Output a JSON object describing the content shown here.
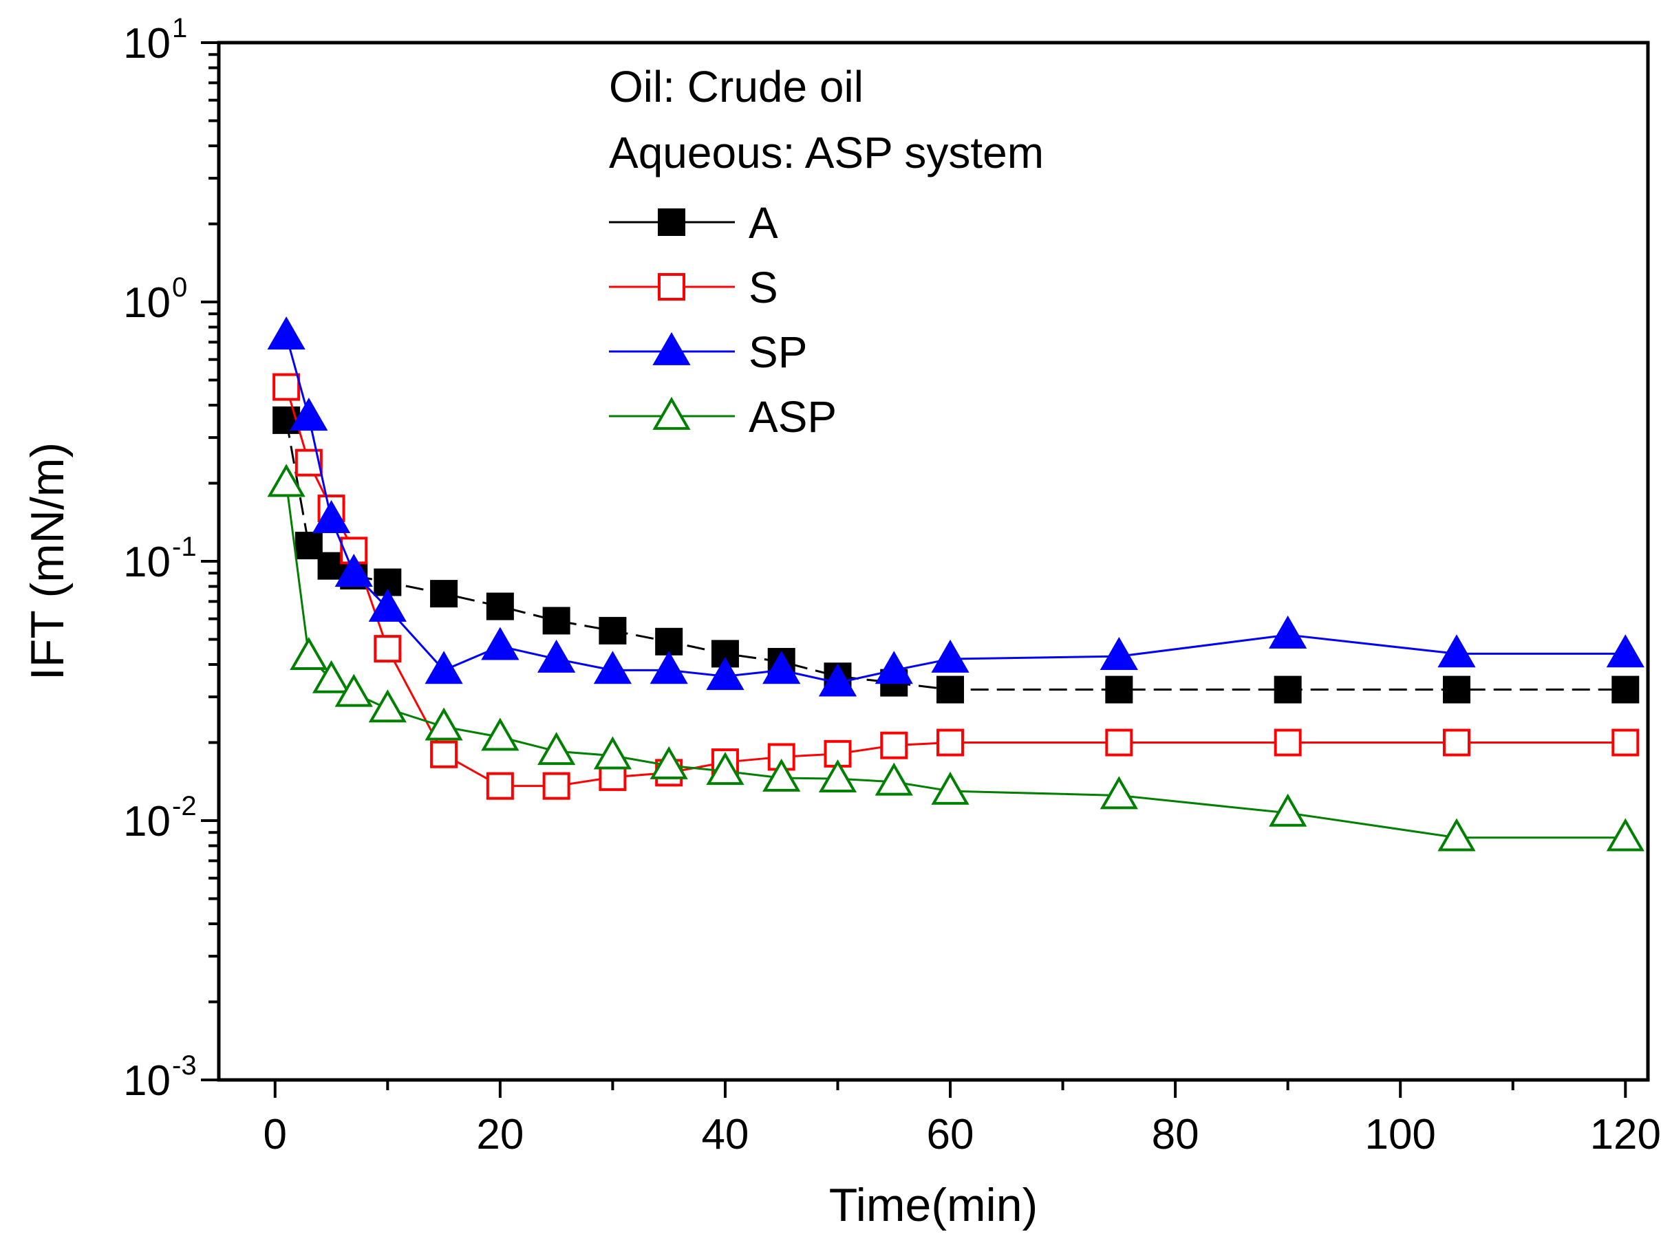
{
  "chart_data": {
    "type": "line",
    "title": "",
    "xlabel": "Time(min)",
    "ylabel": "IFT (mN/m)",
    "xlim": [
      -5,
      122
    ],
    "xticks": [
      0,
      20,
      40,
      60,
      80,
      100,
      120
    ],
    "yscale": "log",
    "ylim": [
      0.001,
      10
    ],
    "yticks": [
      {
        "value": 0.001,
        "base": "10",
        "exp": "-3"
      },
      {
        "value": 0.01,
        "base": "10",
        "exp": "-2"
      },
      {
        "value": 0.1,
        "base": "10",
        "exp": "-1"
      },
      {
        "value": 1,
        "base": "10",
        "exp": "0"
      },
      {
        "value": 10,
        "base": "10",
        "exp": "1"
      }
    ],
    "grid": false,
    "legend": {
      "placement": "top-center",
      "header_lines": [
        "Oil: Crude oil",
        "Aqueous: ASP system"
      ]
    },
    "series": [
      {
        "name": "A",
        "color": "#000000",
        "marker": "square-filled",
        "line": "dash",
        "x": [
          1,
          3,
          5,
          7,
          10,
          15,
          20,
          25,
          30,
          35,
          40,
          45,
          50,
          55,
          60,
          75,
          90,
          105,
          120
        ],
        "y": [
          0.35,
          0.115,
          0.096,
          0.088,
          0.083,
          0.075,
          0.067,
          0.059,
          0.054,
          0.049,
          0.044,
          0.041,
          0.036,
          0.034,
          0.032,
          0.032,
          0.032,
          0.032,
          0.032
        ]
      },
      {
        "name": "S",
        "color": "#ff0000",
        "marker": "square-open",
        "line": "solid",
        "x": [
          1,
          3,
          5,
          7,
          10,
          15,
          20,
          25,
          30,
          35,
          40,
          45,
          50,
          55,
          60,
          75,
          90,
          105,
          120
        ],
        "y": [
          0.47,
          0.24,
          0.16,
          0.11,
          0.046,
          0.018,
          0.0136,
          0.0136,
          0.0147,
          0.0153,
          0.0168,
          0.0176,
          0.0181,
          0.0195,
          0.02,
          0.02,
          0.02,
          0.02,
          0.02
        ]
      },
      {
        "name": "SP",
        "color": "#0000ff",
        "marker": "triangle-filled",
        "line": "solid",
        "x": [
          1,
          3,
          5,
          7,
          10,
          15,
          20,
          25,
          30,
          35,
          40,
          45,
          50,
          55,
          60,
          75,
          90,
          105,
          120
        ],
        "y": [
          0.74,
          0.36,
          0.145,
          0.09,
          0.066,
          0.038,
          0.047,
          0.042,
          0.038,
          0.038,
          0.036,
          0.038,
          0.034,
          0.038,
          0.042,
          0.043,
          0.052,
          0.044,
          0.044
        ]
      },
      {
        "name": "ASP",
        "color": "#008000",
        "marker": "triangle-open",
        "line": "solid",
        "x": [
          1,
          3,
          5,
          7,
          10,
          15,
          20,
          25,
          30,
          35,
          40,
          45,
          50,
          55,
          60,
          75,
          90,
          105,
          120
        ],
        "y": [
          0.2,
          0.043,
          0.035,
          0.031,
          0.027,
          0.023,
          0.021,
          0.0185,
          0.0178,
          0.0163,
          0.0155,
          0.0146,
          0.0145,
          0.0141,
          0.013,
          0.0125,
          0.0107,
          0.0086,
          0.0086
        ]
      }
    ]
  }
}
